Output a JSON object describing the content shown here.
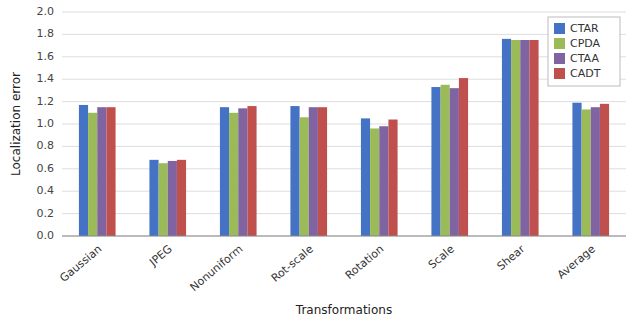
{
  "chart_data": {
    "type": "bar",
    "xlabel": "Transformations",
    "ylabel": "Localization error",
    "categories": [
      "Gaussian",
      "JPEG",
      "Nonuniform",
      "Rot-scale",
      "Rotation",
      "Scale",
      "Shear",
      "Average"
    ],
    "series": [
      {
        "name": "CTAR",
        "color": "#4472C4",
        "values": [
          1.17,
          0.68,
          1.15,
          1.16,
          1.05,
          1.33,
          1.76,
          1.19
        ]
      },
      {
        "name": "CPDA",
        "color": "#9BBB59",
        "values": [
          1.1,
          0.65,
          1.1,
          1.06,
          0.96,
          1.35,
          1.75,
          1.13
        ]
      },
      {
        "name": "CTAA",
        "color": "#8064A2",
        "values": [
          1.15,
          0.67,
          1.14,
          1.15,
          0.98,
          1.32,
          1.75,
          1.15
        ]
      },
      {
        "name": "CADT",
        "color": "#C0504D",
        "values": [
          1.15,
          0.68,
          1.16,
          1.15,
          1.04,
          1.41,
          1.75,
          1.18
        ]
      }
    ],
    "ylim": [
      0,
      2.0
    ],
    "yticks": [
      {
        "value": 0,
        "label": "0.0"
      },
      0.2,
      0.4,
      0.6,
      0.8,
      {
        "value": 1.0,
        "label": "1.0"
      },
      1.2,
      1.4,
      1.6,
      1.8,
      {
        "value": 2.0,
        "label": "2.0"
      }
    ],
    "grid": true,
    "legend": "upper right"
  }
}
